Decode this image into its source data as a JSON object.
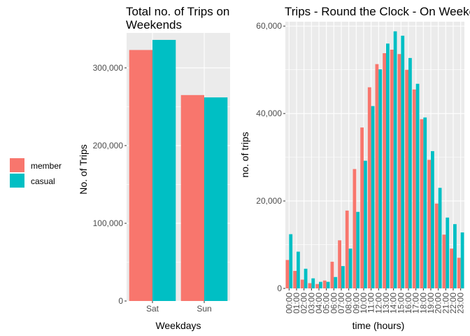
{
  "legend": {
    "items": [
      {
        "label": "member",
        "color": "#F8766D"
      },
      {
        "label": "casual",
        "color": "#00BFC4"
      }
    ]
  },
  "chart_data": [
    {
      "type": "bar",
      "title_line1": "Total no. of Trips on",
      "title_line2": " Weekends",
      "xlabel": "Weekdays",
      "ylabel": "No. of Trips",
      "ylim": [
        0,
        345000
      ],
      "yticks": [
        0,
        100000,
        200000,
        300000
      ],
      "ytick_labels": [
        "0",
        "100,000",
        "200,000",
        "300,000"
      ],
      "categories": [
        "Sat",
        "Sun"
      ],
      "series": [
        {
          "name": "member",
          "values": [
            323000,
            265000
          ]
        },
        {
          "name": "casual",
          "values": [
            336000,
            262000
          ]
        }
      ],
      "grid": true
    },
    {
      "type": "bar",
      "title": "Trips - Round the Clock - On Weekends",
      "xlabel": "time (hours)",
      "ylabel": "no. of trips",
      "ylim": [
        0,
        61000
      ],
      "yticks": [
        0,
        20000,
        40000,
        60000
      ],
      "ytick_labels": [
        "0",
        "20,000",
        "40,000",
        "60,000"
      ],
      "categories": [
        "00:00",
        "01:00",
        "02:00",
        "03:00",
        "04:00",
        "05:00",
        "06:00",
        "07:00",
        "08:00",
        "09:00",
        "10:00",
        "11:00",
        "12:00",
        "13:00",
        "14:00",
        "15:00",
        "16:00",
        "17:00",
        "18:00",
        "19:00",
        "20:00",
        "21:00",
        "22:00",
        "23:00"
      ],
      "series": [
        {
          "name": "member",
          "values": [
            6500,
            4000,
            2000,
            1200,
            1000,
            1800,
            6100,
            11000,
            17800,
            27300,
            36800,
            46000,
            51300,
            53800,
            54600,
            53600,
            50000,
            45500,
            38700,
            29400,
            19400,
            12300,
            9100,
            7000
          ]
        },
        {
          "name": "casual",
          "values": [
            12400,
            8400,
            4500,
            2300,
            1500,
            1500,
            2600,
            5100,
            9100,
            17500,
            29200,
            41700,
            50100,
            56000,
            58800,
            57800,
            52700,
            46800,
            39100,
            31400,
            23000,
            16200,
            14700,
            12800
          ]
        }
      ],
      "grid": true
    }
  ]
}
